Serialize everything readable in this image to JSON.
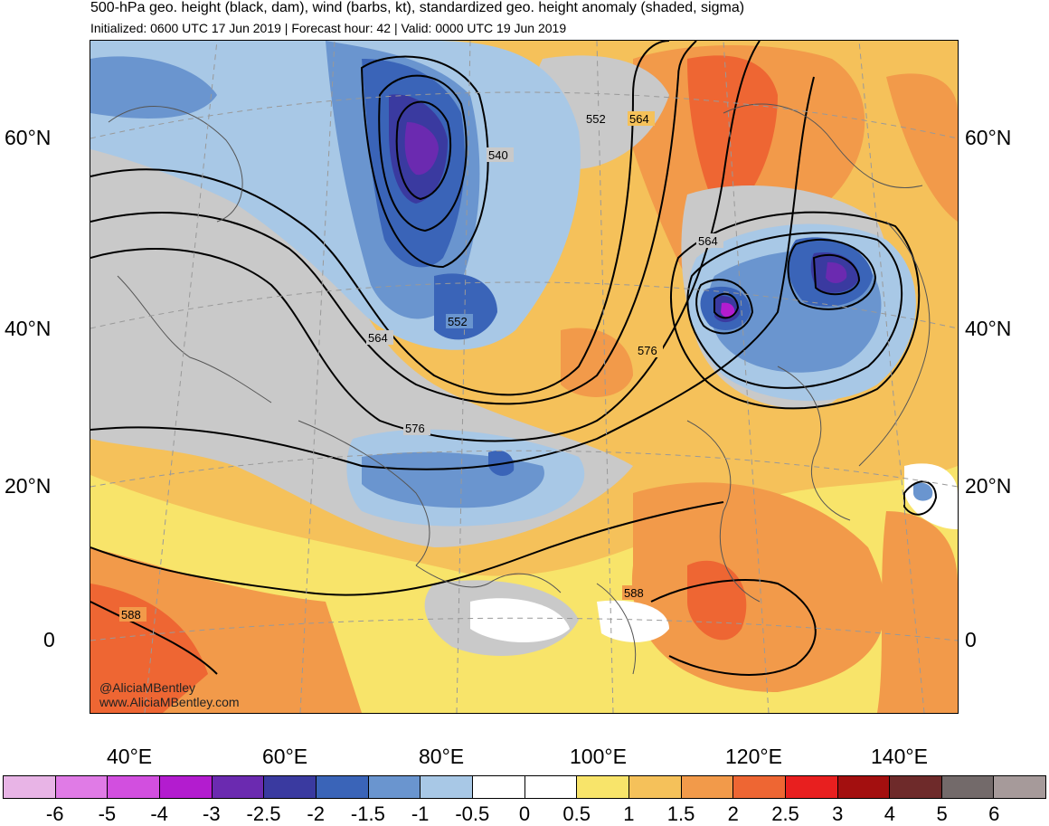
{
  "title": "500-hPa geo. height (black, dam), wind (barbs, kt), standardized geo. height anomaly (shaded, sigma)",
  "subtitle": "Initialized: 0600 UTC 17 Jun 2019 | Forecast hour: 42 | Valid: 0000 UTC 19 Jun 2019",
  "lat_labels": [
    "60°N",
    "40°N",
    "20°N",
    "0"
  ],
  "lon_labels": [
    "40°E",
    "60°E",
    "80°E",
    "100°E",
    "120°E",
    "140°E"
  ],
  "contour_labels": [
    "540",
    "552",
    "564",
    "552",
    "564",
    "564",
    "576",
    "576",
    "588",
    "588"
  ],
  "credits": [
    "@AliciaMBentley",
    "www.AliciaMBentley.com"
  ],
  "colorbar": {
    "labels": [
      "-6",
      "-5",
      "-4",
      "-3",
      "-2.5",
      "-2",
      "-1.5",
      "-1",
      "-0.5",
      "0",
      "0.5",
      "1",
      "1.5",
      "2",
      "2.5",
      "3",
      "4",
      "5",
      "6"
    ],
    "colors": [
      "#e8b4e6",
      "#e07be6",
      "#d24fdf",
      "#b31ccf",
      "#6b2ab0",
      "#3a3aa0",
      "#3a64b8",
      "#6a95cf",
      "#a8c8e6",
      "#ffffff",
      "#ffffff",
      "#f8e46a",
      "#f5c15a",
      "#f29a4a",
      "#ee6633",
      "#e81f1f",
      "#a30f0f",
      "#6e2a2a",
      "#736a6a",
      "#a69a9a"
    ]
  },
  "anomaly_colors": {
    "gray": "#c9c9c9",
    "neg05": "#a8c8e6",
    "neg1": "#6a95cf",
    "neg15": "#3a64b8",
    "neg2": "#3a3aa0",
    "neg25": "#6b2ab0",
    "neg3": "#b31ccf",
    "pos05": "#f8e46a",
    "pos1": "#f5c15a",
    "pos15": "#f29a4a",
    "pos2": "#ee6633"
  }
}
